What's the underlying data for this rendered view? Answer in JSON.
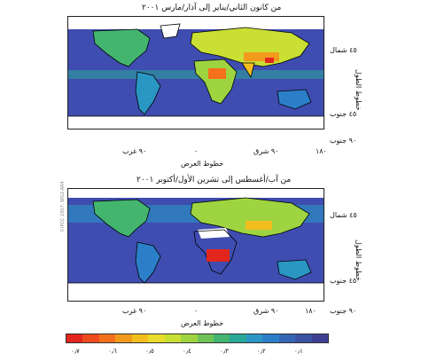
{
  "panels": [
    {
      "title": "من كانون الثاني/يناير إلى آذار/مارس ٢٠٠١",
      "lat_ticks": [
        "٤٥ شمال",
        "٤٥ جنوب",
        "٩٠ جنوب"
      ],
      "lon_ticks": [
        "٩٠ غرب",
        "٠",
        "٩٠ شرق",
        "١٨٠"
      ],
      "xlabel": "خطوط العرض",
      "ylabel": "خطوط الطول"
    },
    {
      "title": "من آب/أغسطس إلى تشرين الأول/أكتوبر ٢٠٠١",
      "lat_ticks": [
        "٤٥ شمال",
        "٤٥ جنوب",
        "٩٠ جنوب"
      ],
      "lon_ticks": [
        "٩٠ غرب",
        "٠",
        "٩٠ شرق",
        "١٨٠"
      ],
      "xlabel": "خطوط العرض",
      "ylabel": "خطوط الطول"
    }
  ],
  "copyright": "©IPCC 2007: WG1-AR4",
  "colorbar": {
    "colors": [
      "#e3261d",
      "#ee4a1d",
      "#f4701c",
      "#f39a1d",
      "#f2be1f",
      "#e9dc2a",
      "#c9df34",
      "#9fd441",
      "#6fc356",
      "#43b56f",
      "#2aa899",
      "#2a96c4",
      "#2b7fc9",
      "#3566b5",
      "#3c51a3",
      "#3e3f93"
    ],
    "labels": [
      "٠٫٧",
      "٠٫٦",
      "٠٫٥",
      "٠٫٤",
      "٠٫٣",
      "٠٫٢",
      "٠٫١"
    ]
  },
  "colors": {
    "ocean": "#3f4db0",
    "land_low": "#2f86c8",
    "no_data": "#ffffff",
    "coast": "#000000"
  }
}
